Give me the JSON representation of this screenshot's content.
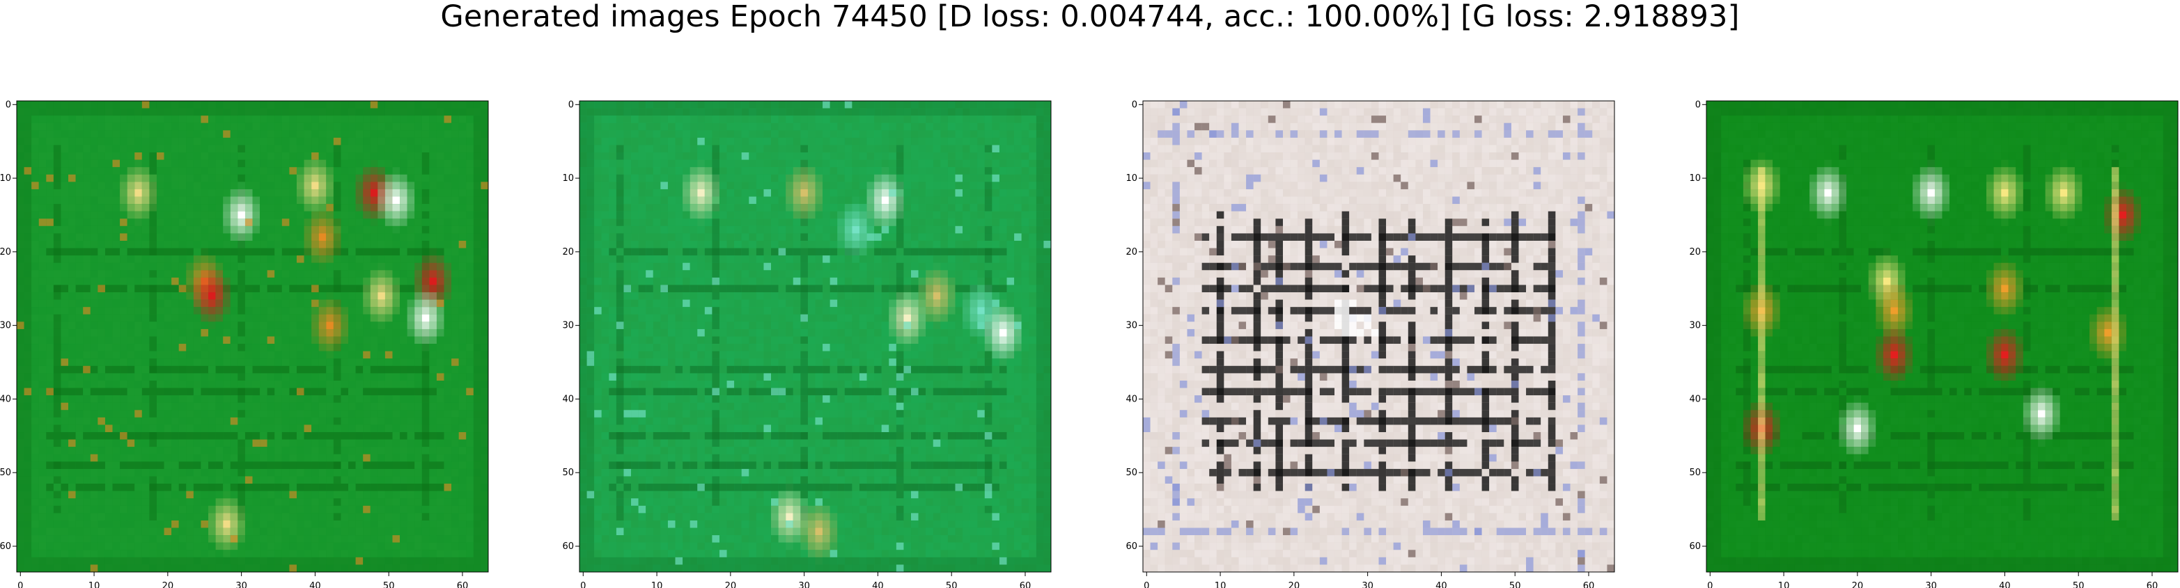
{
  "title": "Generated images Epoch 74450 [D loss: 0.004744, acc.: 100.00%] [G loss: 2.918893]",
  "chart_data": [
    {
      "type": "heatmap",
      "subtitle": "",
      "xlabel": "",
      "ylabel": "",
      "xlim": [
        0,
        63
      ],
      "ylim": [
        63,
        0
      ],
      "x_ticks": [
        0,
        10,
        20,
        30,
        40,
        50,
        60
      ],
      "y_ticks": [
        0,
        10,
        20,
        30,
        40,
        50,
        60
      ],
      "grid": false,
      "dominant_color": "#12952a",
      "base_color": "#1a9a2e",
      "stroke_color": "#0a6d14",
      "highlight_colors": [
        "#f1dc86",
        "#e58b23",
        "#d91d1d",
        "#ffffff"
      ]
    },
    {
      "type": "heatmap",
      "subtitle": "",
      "xlabel": "",
      "ylabel": "",
      "xlim": [
        0,
        63
      ],
      "ylim": [
        63,
        0
      ],
      "x_ticks": [
        0,
        10,
        20,
        30,
        40,
        50,
        60
      ],
      "y_ticks": [
        0,
        10,
        20,
        30,
        40,
        50,
        60
      ],
      "grid": false,
      "dominant_color": "#1bb05a",
      "base_color": "#20a248",
      "stroke_color": "#0d6d24",
      "highlight_colors": [
        "#f4f0c4",
        "#d6c06a",
        "#75e2c5",
        "#ffffff"
      ]
    },
    {
      "type": "heatmap",
      "subtitle": "",
      "xlabel": "",
      "ylabel": "",
      "xlim": [
        0,
        63
      ],
      "ylim": [
        63,
        0
      ],
      "x_ticks": [
        0,
        10,
        20,
        30,
        40,
        50,
        60
      ],
      "y_ticks": [
        0,
        10,
        20,
        30,
        40,
        50,
        60
      ],
      "grid": false,
      "dominant_color": "#d8ccc7",
      "base_color": "#e4d8d2",
      "stroke_color": "#131313",
      "highlight_colors": [
        "#8793d6",
        "#7b6864",
        "#ffffff",
        "#1a1d24"
      ]
    },
    {
      "type": "heatmap",
      "subtitle": "",
      "xlabel": "",
      "ylabel": "",
      "xlim": [
        0,
        63
      ],
      "ylim": [
        63,
        0
      ],
      "x_ticks": [
        0,
        10,
        20,
        30,
        40,
        50,
        60
      ],
      "y_ticks": [
        0,
        10,
        20,
        30,
        40,
        50,
        60
      ],
      "grid": false,
      "dominant_color": "#0d8a18",
      "base_color": "#128f1f",
      "stroke_color": "#0b6712",
      "highlight_colors": [
        "#f7e882",
        "#ee9e2c",
        "#e31f1f",
        "#ffffff"
      ]
    }
  ]
}
